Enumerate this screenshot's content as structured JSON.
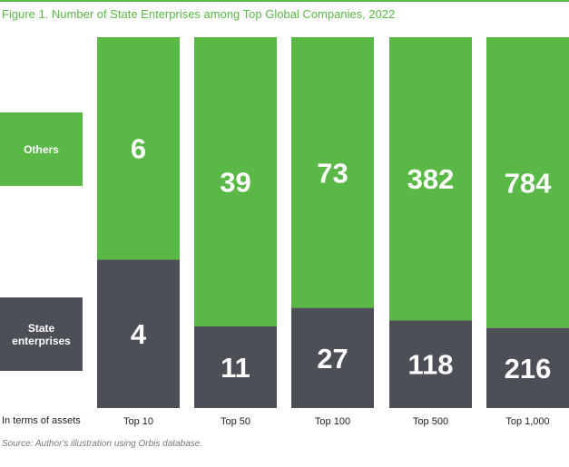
{
  "title": "Figure 1. Number of State Enterprises among Top Global Companies, 2022",
  "legend": {
    "others": "Others",
    "state_line1": "State",
    "state_line2": "enterprises"
  },
  "row_label": "In terms of assets",
  "source": "Source: Author's illustration using Orbis database.",
  "colors": {
    "others": "#5ab846",
    "state": "#4c4f56",
    "accent": "#5ab846"
  },
  "chart_data": {
    "type": "bar",
    "stacked": true,
    "normalized": true,
    "categories": [
      "Top 10",
      "Top 50",
      "Top 100",
      "Top 500",
      "Top 1,000"
    ],
    "series": [
      {
        "name": "State enterprises",
        "values": [
          4,
          11,
          27,
          118,
          216
        ]
      },
      {
        "name": "Others",
        "values": [
          6,
          39,
          73,
          382,
          784
        ]
      }
    ],
    "title": "Figure 1. Number of State Enterprises among Top Global Companies, 2022",
    "xlabel": "In terms of assets",
    "ylabel": "",
    "legend": "left"
  }
}
